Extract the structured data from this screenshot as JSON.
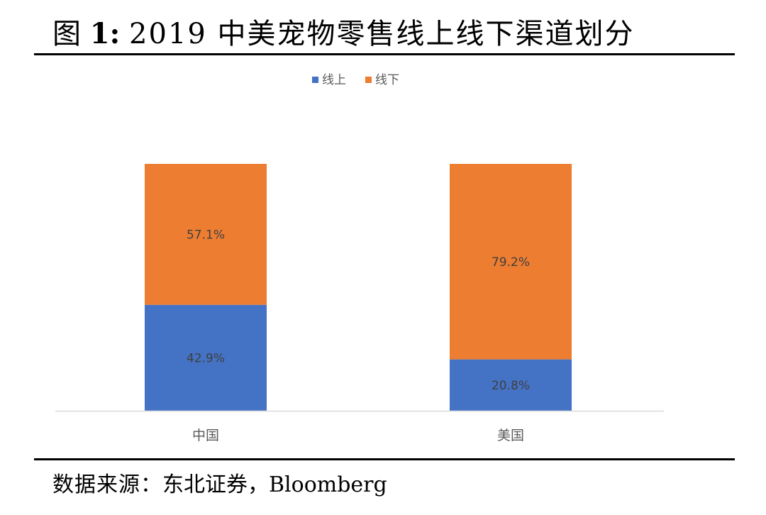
{
  "figure": {
    "label": "图",
    "number": "1:",
    "title": "2019 中美宠物零售线上线下渠道划分"
  },
  "source": {
    "label": "数据来源：",
    "text": "东北证券，Bloomberg"
  },
  "chart_data": {
    "type": "bar",
    "stacked": true,
    "percent": true,
    "categories": [
      "中国",
      "美国"
    ],
    "series": [
      {
        "name": "线上",
        "color": "#4472C4",
        "values": [
          42.9,
          20.8
        ],
        "labels": [
          "42.9%",
          "20.8%"
        ]
      },
      {
        "name": "线下",
        "color": "#ED7D31",
        "values": [
          57.1,
          79.2
        ],
        "labels": [
          "57.1%",
          "79.2%"
        ]
      }
    ],
    "ylim": [
      0,
      100
    ],
    "legend_position": "top-center",
    "grid": false
  }
}
